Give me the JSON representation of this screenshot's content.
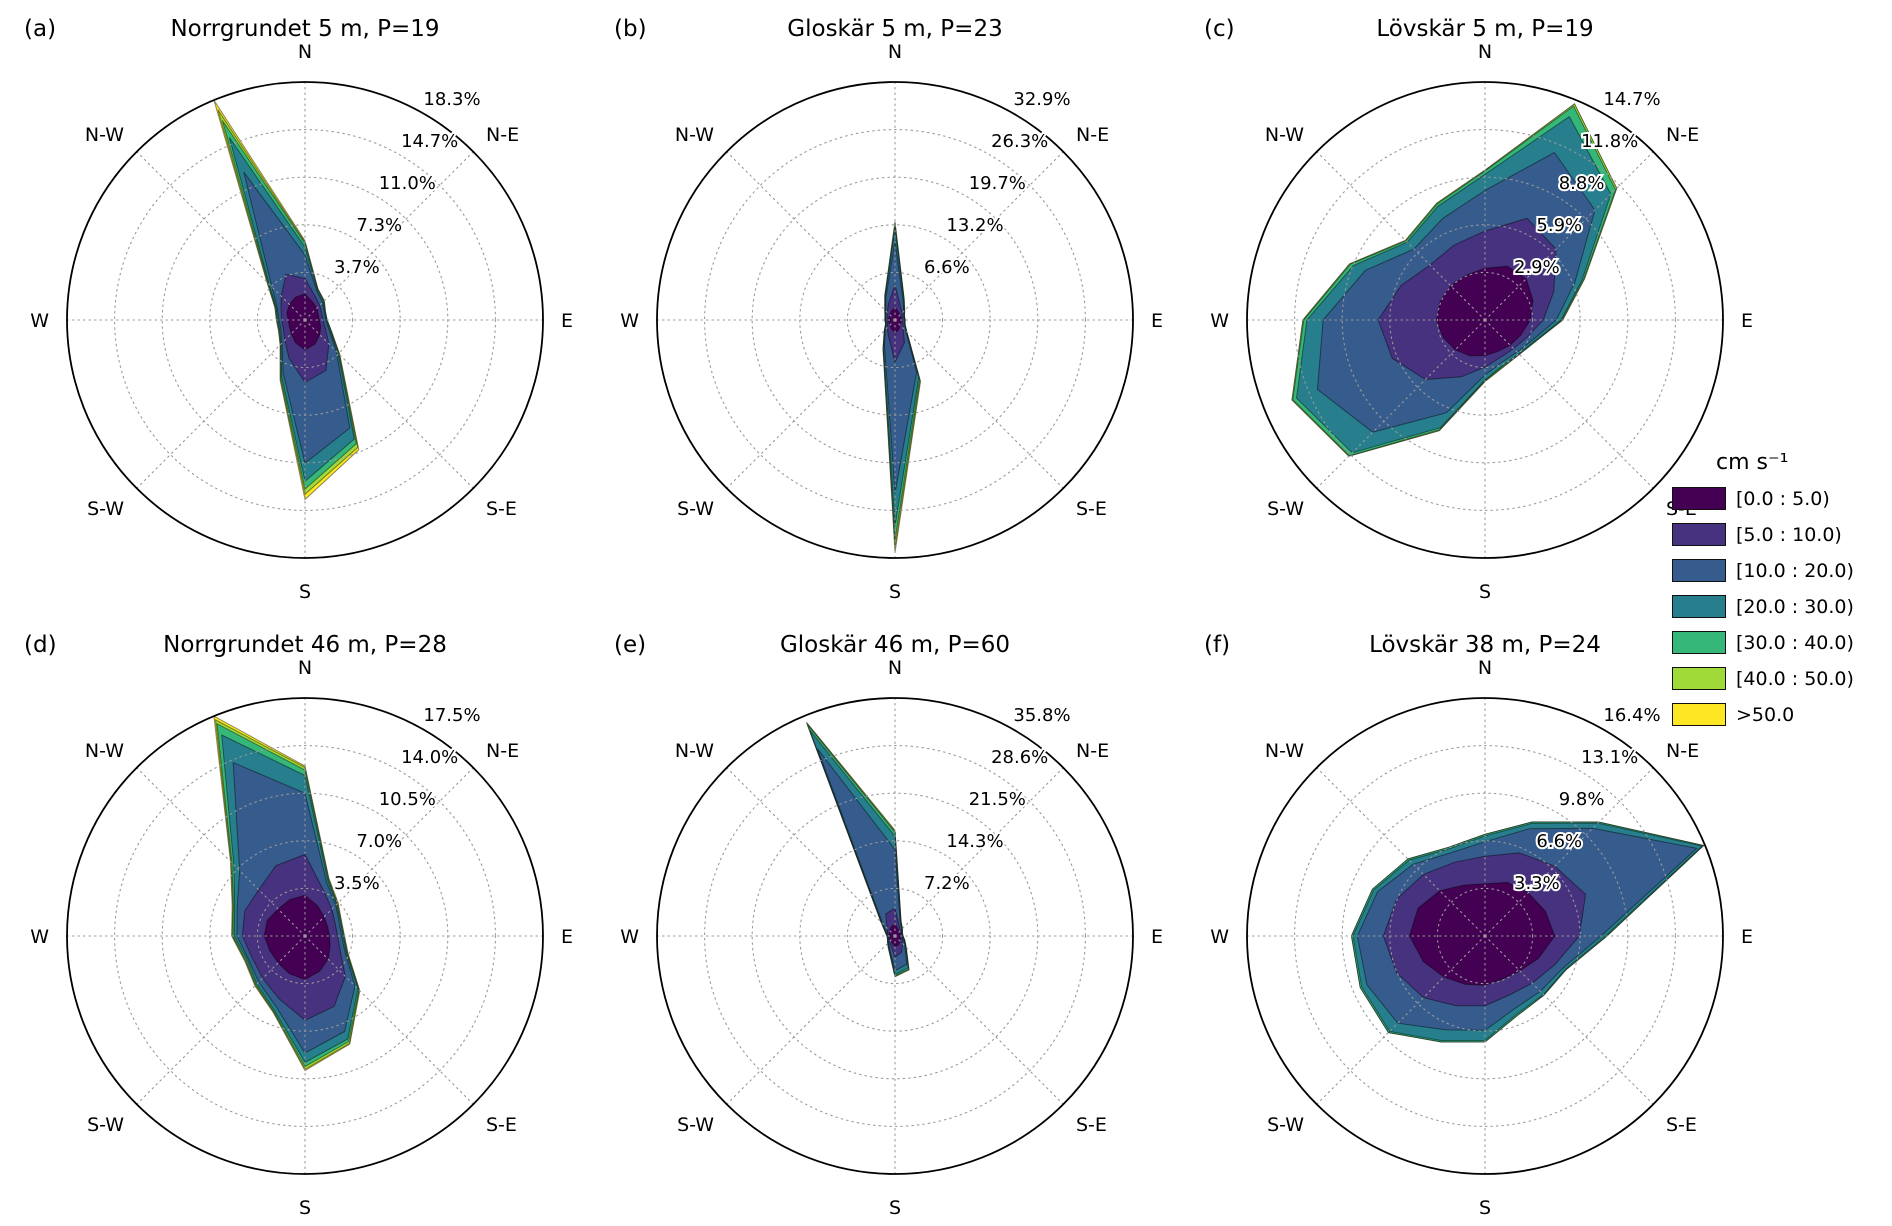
{
  "legend": {
    "title": "cm s⁻¹"
  },
  "chart_data": {
    "type": "windrose-multiples",
    "speed_unit": "cm s⁻¹",
    "sector_count": 16,
    "compass_labels": [
      "N",
      "N-E",
      "E",
      "S-E",
      "S",
      "S-W",
      "W",
      "N-W"
    ],
    "bins": [
      {
        "label": "[0.0 : 5.0)",
        "color": "#440154"
      },
      {
        "label": "[5.0 : 10.0)",
        "color": "#46327e"
      },
      {
        "label": "[10.0 : 20.0)",
        "color": "#365c8d"
      },
      {
        "label": "[20.0 : 30.0)",
        "color": "#277f8e"
      },
      {
        "label": "[30.0 : 40.0)",
        "color": "#35b779"
      },
      {
        "label": "[40.0 : 50.0)",
        "color": "#a0da39"
      },
      {
        "label": ">50.0",
        "color": "#fde725"
      }
    ],
    "panels": [
      {
        "tag": "(a)",
        "title": "Norrgrundet 5 m, P=19",
        "rmax": 18.3,
        "rticks": [
          3.7,
          7.3,
          11.0,
          14.7,
          18.3
        ],
        "rtick_labels": [
          "3.7%",
          "7.3%",
          "11.0%",
          "14.7%",
          "18.3%"
        ],
        "cumulative_by_bin": [
          [
            2.0,
            1.5,
            1.3,
            1.1,
            1.1,
            1.3,
            1.6,
            2.0,
            2.3,
            1.9,
            1.5,
            1.3,
            1.3,
            1.5,
            1.7,
            1.9
          ],
          [
            3.2,
            2.0,
            1.6,
            1.4,
            1.4,
            1.7,
            2.6,
            4.2,
            4.8,
            3.2,
            2.2,
            1.8,
            1.8,
            2.0,
            2.6,
            3.8
          ],
          [
            5.0,
            2.4,
            1.9,
            1.6,
            1.6,
            2.0,
            3.4,
            9.0,
            11.0,
            4.4,
            2.5,
            2.0,
            2.0,
            2.3,
            3.6,
            12.3
          ],
          [
            5.6,
            2.5,
            2.0,
            1.65,
            1.65,
            2.1,
            3.6,
            9.9,
            12.4,
            4.7,
            2.6,
            2.1,
            2.1,
            2.4,
            3.9,
            15.2
          ],
          [
            5.9,
            2.55,
            2.05,
            1.7,
            1.7,
            2.15,
            3.7,
            10.3,
            13.0,
            4.85,
            2.65,
            2.15,
            2.15,
            2.45,
            4.0,
            16.6
          ],
          [
            6.0,
            2.6,
            2.1,
            1.7,
            1.7,
            2.2,
            3.75,
            10.6,
            13.4,
            4.95,
            2.7,
            2.2,
            2.2,
            2.5,
            4.1,
            17.5
          ],
          [
            6.1,
            2.6,
            2.1,
            1.7,
            1.7,
            2.2,
            3.8,
            10.8,
            13.8,
            5.0,
            2.7,
            2.2,
            2.2,
            2.5,
            4.15,
            18.3
          ]
        ]
      },
      {
        "tag": "(b)",
        "title": "Gloskär 5 m, P=23",
        "rmax": 32.9,
        "rticks": [
          6.6,
          13.2,
          19.7,
          26.3,
          32.9
        ],
        "rtick_labels": [
          "6.6%",
          "13.2%",
          "19.7%",
          "26.3%",
          "32.9%"
        ],
        "cumulative_by_bin": [
          [
            1.8,
            1.2,
            1.0,
            0.9,
            0.9,
            0.9,
            1.0,
            1.4,
            1.8,
            1.3,
            1.0,
            0.9,
            0.9,
            0.9,
            1.0,
            1.3
          ],
          [
            4.8,
            2.0,
            1.4,
            1.1,
            1.1,
            1.2,
            1.6,
            3.4,
            5.8,
            2.4,
            1.5,
            1.1,
            1.1,
            1.2,
            1.5,
            2.4
          ],
          [
            11.0,
            2.9,
            1.7,
            1.3,
            1.3,
            1.4,
            2.1,
            7.8,
            24.0,
            3.8,
            1.9,
            1.3,
            1.3,
            1.4,
            1.8,
            3.3
          ],
          [
            12.6,
            3.1,
            1.8,
            1.35,
            1.35,
            1.45,
            2.2,
            8.6,
            28.5,
            4.1,
            2.0,
            1.35,
            1.35,
            1.45,
            1.9,
            3.5
          ],
          [
            13.1,
            3.2,
            1.85,
            1.4,
            1.4,
            1.5,
            2.25,
            8.9,
            30.5,
            4.25,
            2.05,
            1.4,
            1.4,
            1.5,
            1.95,
            3.6
          ],
          [
            13.4,
            3.25,
            1.9,
            1.4,
            1.4,
            1.5,
            2.3,
            9.1,
            31.5,
            4.3,
            2.1,
            1.4,
            1.4,
            1.5,
            2.0,
            3.65
          ],
          [
            13.6,
            3.3,
            1.9,
            1.4,
            1.4,
            1.5,
            2.3,
            9.2,
            32.2,
            4.35,
            2.1,
            1.4,
            1.4,
            1.5,
            2.0,
            3.7
          ]
        ]
      },
      {
        "tag": "(c)",
        "title": "Lövskär 5 m, P=19",
        "rmax": 14.7,
        "rticks": [
          2.9,
          5.9,
          8.8,
          11.8,
          14.7
        ],
        "rtick_labels": [
          "2.9%",
          "5.9%",
          "8.8%",
          "11.8%",
          "14.7%"
        ],
        "cumulative_by_bin": [
          [
            3.2,
            3.6,
            3.6,
            3.2,
            2.8,
            2.4,
            2.2,
            2.1,
            2.2,
            2.4,
            2.6,
            2.8,
            3.0,
            3.0,
            3.0,
            3.0
          ],
          [
            5.5,
            6.8,
            6.2,
            4.6,
            3.6,
            2.8,
            2.5,
            2.5,
            2.9,
            3.8,
            5.2,
            6.2,
            6.6,
            5.6,
            4.8,
            5.0
          ],
          [
            8.0,
            11.2,
            9.6,
            6.0,
            4.4,
            3.2,
            2.8,
            2.8,
            3.4,
            6.2,
            9.8,
            11.2,
            10.0,
            8.0,
            6.2,
            6.8
          ],
          [
            9.0,
            13.6,
            11.0,
            6.5,
            4.7,
            3.35,
            2.95,
            3.0,
            3.7,
            7.2,
            11.6,
            12.6,
            11.0,
            8.8,
            6.8,
            7.6
          ],
          [
            9.2,
            14.3,
            11.4,
            6.6,
            4.75,
            3.4,
            3.0,
            3.05,
            3.75,
            7.35,
            11.85,
            12.85,
            11.2,
            9.0,
            6.9,
            7.75
          ],
          [
            9.25,
            14.45,
            11.5,
            6.65,
            4.8,
            3.4,
            3.0,
            3.1,
            3.8,
            7.4,
            11.9,
            12.9,
            11.25,
            9.05,
            6.95,
            7.8
          ],
          [
            9.25,
            14.45,
            11.5,
            6.65,
            4.8,
            3.4,
            3.0,
            3.1,
            3.8,
            7.4,
            11.9,
            12.9,
            11.25,
            9.05,
            6.95,
            7.8
          ]
        ]
      },
      {
        "tag": "(d)",
        "title": "Norrgrundet 46 m, P=28",
        "rmax": 17.5,
        "rticks": [
          3.5,
          7.0,
          10.5,
          14.0,
          17.5
        ],
        "rtick_labels": [
          "3.5%",
          "7.0%",
          "10.5%",
          "14.0%",
          "17.5%"
        ],
        "cumulative_by_bin": [
          [
            3.0,
            2.4,
            2.0,
            1.8,
            1.8,
            2.0,
            2.4,
            2.8,
            3.2,
            3.0,
            2.8,
            2.8,
            3.0,
            3.0,
            2.8,
            2.9
          ],
          [
            6.0,
            3.6,
            2.8,
            2.4,
            2.4,
            2.8,
            4.2,
            5.6,
            6.2,
            5.0,
            4.4,
            4.2,
            4.6,
            4.8,
            4.8,
            5.6
          ],
          [
            10.5,
            4.2,
            3.2,
            2.7,
            2.7,
            3.2,
            5.2,
            7.6,
            8.6,
            5.6,
            4.8,
            4.5,
            5.0,
            5.4,
            6.8,
            13.8
          ],
          [
            11.8,
            4.4,
            3.3,
            2.8,
            2.8,
            3.3,
            5.5,
            8.2,
            9.3,
            5.9,
            5.0,
            4.6,
            5.2,
            5.6,
            7.4,
            16.0
          ],
          [
            12.2,
            4.5,
            3.35,
            2.85,
            2.85,
            3.35,
            5.6,
            8.4,
            9.6,
            6.0,
            5.1,
            4.7,
            5.3,
            5.7,
            7.6,
            16.9
          ],
          [
            12.4,
            4.55,
            3.4,
            2.9,
            2.9,
            3.4,
            5.65,
            8.55,
            9.8,
            6.05,
            5.15,
            4.75,
            5.35,
            5.75,
            7.7,
            17.2
          ],
          [
            12.5,
            4.6,
            3.45,
            2.9,
            2.9,
            3.45,
            5.7,
            8.6,
            9.9,
            6.1,
            5.2,
            4.8,
            5.4,
            5.8,
            7.75,
            17.5
          ]
        ]
      },
      {
        "tag": "(e)",
        "title": "Gloskär 46 m, P=60",
        "rmax": 35.8,
        "rticks": [
          7.2,
          14.3,
          21.5,
          28.6,
          35.8
        ],
        "rtick_labels": [
          "7.2%",
          "14.3%",
          "21.5%",
          "28.6%",
          "35.8%"
        ],
        "cumulative_by_bin": [
          [
            1.8,
            1.1,
            0.9,
            0.8,
            0.8,
            0.9,
            1.1,
            1.4,
            1.6,
            1.1,
            0.9,
            0.8,
            0.8,
            0.9,
            1.1,
            1.5
          ],
          [
            4.2,
            1.6,
            1.2,
            1.0,
            1.0,
            1.2,
            1.6,
            2.6,
            3.2,
            1.6,
            1.2,
            1.0,
            1.0,
            1.2,
            1.7,
            3.6
          ],
          [
            13.0,
            2.1,
            1.4,
            1.1,
            1.1,
            1.4,
            2.1,
            4.6,
            5.2,
            2.1,
            1.4,
            1.1,
            1.1,
            1.4,
            2.6,
            30.5
          ],
          [
            15.0,
            2.25,
            1.5,
            1.15,
            1.15,
            1.5,
            2.25,
            5.2,
            5.8,
            2.25,
            1.5,
            1.15,
            1.15,
            1.5,
            2.8,
            33.5
          ],
          [
            15.6,
            2.3,
            1.55,
            1.2,
            1.2,
            1.55,
            2.3,
            5.4,
            6.0,
            2.3,
            1.55,
            1.2,
            1.2,
            1.55,
            2.9,
            34.4
          ],
          [
            15.8,
            2.35,
            1.6,
            1.2,
            1.2,
            1.6,
            2.35,
            5.5,
            6.1,
            2.35,
            1.6,
            1.2,
            1.2,
            1.6,
            2.95,
            34.7
          ],
          [
            15.9,
            2.4,
            1.6,
            1.2,
            1.2,
            1.6,
            2.4,
            5.5,
            6.1,
            2.4,
            1.6,
            1.2,
            1.2,
            1.6,
            3.0,
            34.8
          ]
        ]
      },
      {
        "tag": "(f)",
        "title": "Lövskär 38 m, P=24",
        "rmax": 16.4,
        "rticks": [
          3.3,
          6.6,
          9.8,
          13.1,
          16.4
        ],
        "rtick_labels": [
          "3.3%",
          "6.6%",
          "9.8%",
          "13.1%",
          "16.4%"
        ],
        "cumulative_by_bin": [
          [
            3.6,
            4.0,
            4.2,
            4.5,
            4.8,
            4.0,
            3.4,
            3.2,
            3.4,
            3.6,
            4.0,
            4.6,
            5.2,
            5.0,
            4.4,
            3.8
          ],
          [
            5.5,
            6.2,
            6.8,
            7.5,
            6.5,
            5.2,
            4.6,
            4.4,
            4.8,
            5.2,
            6.0,
            6.6,
            7.0,
            6.6,
            6.0,
            5.5
          ],
          [
            6.5,
            8.0,
            10.5,
            15.8,
            8.0,
            5.8,
            5.4,
            5.4,
            6.5,
            7.0,
            8.5,
            8.8,
            8.8,
            8.0,
            7.0,
            6.2
          ],
          [
            6.9,
            8.4,
            11.0,
            16.2,
            8.3,
            6.0,
            5.7,
            5.8,
            7.2,
            7.8,
            9.3,
            9.2,
            9.1,
            8.3,
            7.4,
            6.5
          ],
          [
            7.0,
            8.5,
            11.1,
            16.3,
            8.4,
            6.05,
            5.75,
            5.9,
            7.3,
            7.9,
            9.4,
            9.3,
            9.2,
            8.4,
            7.5,
            6.6
          ],
          [
            7.0,
            8.5,
            11.1,
            16.3,
            8.4,
            6.05,
            5.75,
            5.9,
            7.3,
            7.9,
            9.4,
            9.3,
            9.2,
            8.4,
            7.5,
            6.6
          ],
          [
            7.0,
            8.5,
            11.1,
            16.3,
            8.4,
            6.05,
            5.75,
            5.9,
            7.3,
            7.9,
            9.4,
            9.3,
            9.2,
            8.4,
            7.5,
            6.6
          ]
        ]
      }
    ]
  }
}
